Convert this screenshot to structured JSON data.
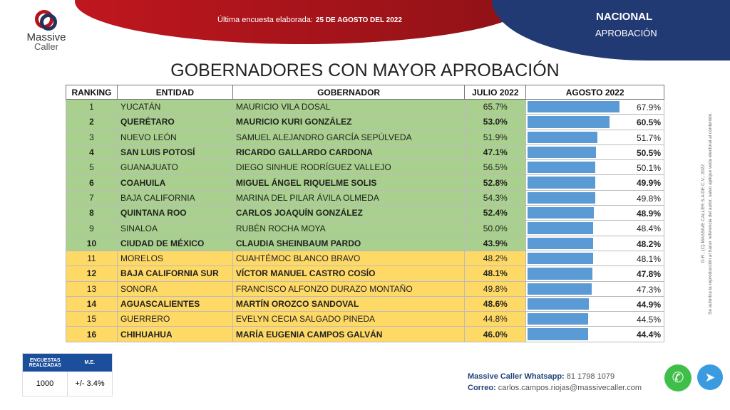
{
  "header": {
    "logo_text_1": "Massive",
    "logo_text_2": "Caller",
    "survey_label": "Última encuesta elaborada:",
    "survey_date": "25 DE AGOSTO DEL 2022",
    "scope": "NACIONAL",
    "topic": "APROBACIÓN"
  },
  "title": "GOBERNADORES CON MAYOR APROBACIÓN",
  "columns": [
    "RANKING",
    "ENTIDAD",
    "GOBERNADOR",
    "JULIO 2022",
    "AGOSTO 2022"
  ],
  "rows": [
    {
      "rank": "1",
      "entidad": "YUCATÁN",
      "gobernador": "MAURICIO VILA DOSAL",
      "julio": "65.7%",
      "agosto": "67.9%",
      "agosto_value": 67.9,
      "color": "green",
      "bold": false
    },
    {
      "rank": "2",
      "entidad": "QUERÉTARO",
      "gobernador": "MAURICIO KURI GONZÁLEZ",
      "julio": "53.0%",
      "agosto": "60.5%",
      "agosto_value": 60.5,
      "color": "green",
      "bold": true
    },
    {
      "rank": "3",
      "entidad": "NUEVO LEÓN",
      "gobernador": "SAMUEL ALEJANDRO GARCÍA SEPÚLVEDA",
      "julio": "51.9%",
      "agosto": "51.7%",
      "agosto_value": 51.7,
      "color": "green",
      "bold": false
    },
    {
      "rank": "4",
      "entidad": "SAN LUIS POTOSÍ",
      "gobernador": "RICARDO GALLARDO CARDONA",
      "julio": "47.1%",
      "agosto": "50.5%",
      "agosto_value": 50.5,
      "color": "green",
      "bold": true
    },
    {
      "rank": "5",
      "entidad": "GUANAJUATO",
      "gobernador": "DIEGO SINHUE RODRÍGUEZ VALLEJO",
      "julio": "56.5%",
      "agosto": "50.1%",
      "agosto_value": 50.1,
      "color": "green",
      "bold": false
    },
    {
      "rank": "6",
      "entidad": "COAHUILA",
      "gobernador": "MIGUEL ÁNGEL RIQUELME SOLIS",
      "julio": "52.8%",
      "agosto": "49.9%",
      "agosto_value": 49.9,
      "color": "green",
      "bold": true
    },
    {
      "rank": "7",
      "entidad": "BAJA CALIFORNIA",
      "gobernador": "MARINA DEL PILAR ÁVILA OLMEDA",
      "julio": "54.3%",
      "agosto": "49.8%",
      "agosto_value": 49.8,
      "color": "green",
      "bold": false
    },
    {
      "rank": "8",
      "entidad": "QUINTANA ROO",
      "gobernador": "CARLOS JOAQUÍN GONZÁLEZ",
      "julio": "52.4%",
      "agosto": "48.9%",
      "agosto_value": 48.9,
      "color": "green",
      "bold": true
    },
    {
      "rank": "9",
      "entidad": "SINALOA",
      "gobernador": "RUBÉN ROCHA MOYA",
      "julio": "50.0%",
      "agosto": "48.4%",
      "agosto_value": 48.4,
      "color": "green",
      "bold": false
    },
    {
      "rank": "10",
      "entidad": "CIUDAD DE MÉXICO",
      "gobernador": "CLAUDIA SHEINBAUM PARDO",
      "julio": "43.9%",
      "agosto": "48.2%",
      "agosto_value": 48.2,
      "color": "green",
      "bold": true
    },
    {
      "rank": "11",
      "entidad": "MORELOS",
      "gobernador": "CUAHTÉMOC BLANCO BRAVO",
      "julio": "48.2%",
      "agosto": "48.1%",
      "agosto_value": 48.1,
      "color": "yellow",
      "bold": false
    },
    {
      "rank": "12",
      "entidad": "BAJA CALIFORNIA SUR",
      "gobernador": "VÍCTOR MANUEL CASTRO COSÍO",
      "julio": "48.1%",
      "agosto": "47.8%",
      "agosto_value": 47.8,
      "color": "yellow",
      "bold": true
    },
    {
      "rank": "13",
      "entidad": "SONORA",
      "gobernador": "FRANCISCO ALFONZO DURAZO MONTAÑO",
      "julio": "49.8%",
      "agosto": "47.3%",
      "agosto_value": 47.3,
      "color": "yellow",
      "bold": false
    },
    {
      "rank": "14",
      "entidad": "AGUASCALIENTES",
      "gobernador": "MARTÍN OROZCO SANDOVAL",
      "julio": "48.6%",
      "agosto": "44.9%",
      "agosto_value": 44.9,
      "color": "yellow",
      "bold": true
    },
    {
      "rank": "15",
      "entidad": "GUERRERO",
      "gobernador": "EVELYN CECIA SALGADO PINEDA",
      "julio": "44.8%",
      "agosto": "44.5%",
      "agosto_value": 44.5,
      "color": "yellow",
      "bold": false
    },
    {
      "rank": "16",
      "entidad": "CHIHUAHUA",
      "gobernador": "MARÍA EUGENIA CAMPOS GALVÁN",
      "julio": "46.0%",
      "agosto": "44.4%",
      "agosto_value": 44.4,
      "color": "yellow",
      "bold": true
    }
  ],
  "colors": {
    "green": "#a9d08e",
    "yellow": "#ffd966",
    "bar": "#5b9bd5",
    "red": "#c0161f",
    "navy": "#223a74"
  },
  "side_note": {
    "line1": "D.R., (C) MASSIVE CALLER S.A DE C.V., 2022",
    "line2": "Se autoriza la reproducción al hacer referencia del autor, salvo aplique veda electoral al contenido."
  },
  "stats": {
    "h1": "ENCUESTAS REALIZADAS",
    "h2": "M.E.",
    "v1": "1000",
    "v2": "+/- 3.4%"
  },
  "contact": {
    "wa_label": "Massive Caller Whatsapp:",
    "wa_value": "81 1798 1079",
    "mail_label": "Correo:",
    "mail_value": "carlos.campos.riojas@massivecaller.com"
  }
}
